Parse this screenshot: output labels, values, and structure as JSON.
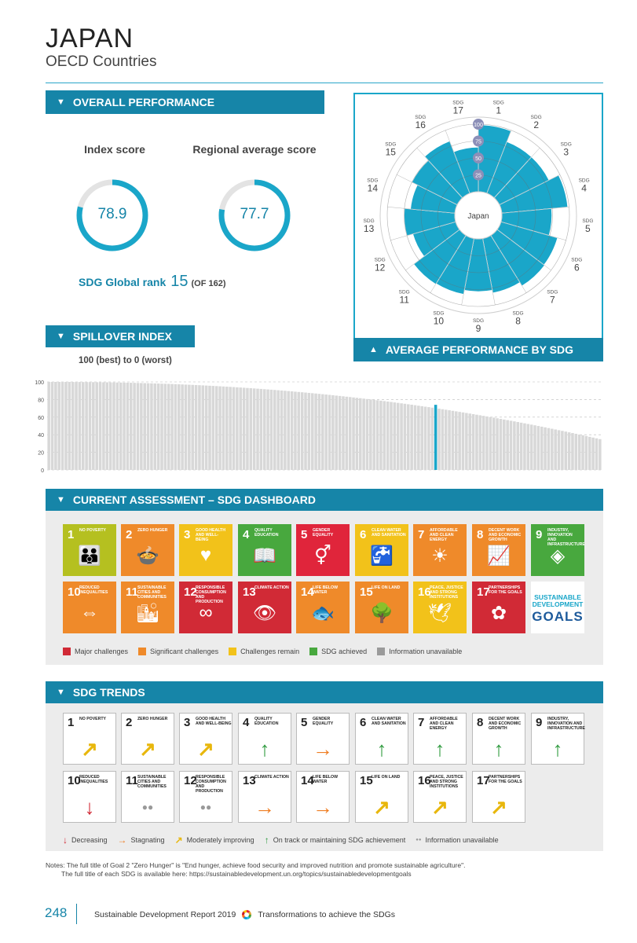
{
  "header": {
    "title": "JAPAN",
    "subtitle": "OECD Countries"
  },
  "overall": {
    "banner": "OVERALL PERFORMANCE",
    "index_label": "Index score",
    "regional_label": "Regional average score",
    "index_score": "78.9",
    "regional_score": "77.7",
    "index_fraction": 0.789,
    "regional_fraction": 0.777,
    "rank_label": "SDG Global rank",
    "rank_value": "15",
    "rank_of": "(OF 162)"
  },
  "radar": {
    "banner": "AVERAGE PERFORMANCE BY SDG",
    "center_label": "Japan",
    "ring_labels": [
      "25",
      "50",
      "75",
      "100"
    ],
    "prefix": "SDG",
    "goals": [
      "1",
      "2",
      "3",
      "4",
      "5",
      "6",
      "7",
      "8",
      "9",
      "10",
      "11",
      "12",
      "13",
      "14",
      "15",
      "16",
      "17"
    ],
    "values": [
      99,
      82,
      82,
      98,
      74,
      87,
      88,
      82,
      78,
      84,
      85,
      66,
      75,
      66,
      75,
      83,
      66
    ]
  },
  "spillover": {
    "banner": "SPILLOVER INDEX",
    "note": "100 (best) to 0 (worst)",
    "highlight_value": 74,
    "highlight_rank": 113
  },
  "chart_data": {
    "type": "bar",
    "title": "",
    "ylim": [
      0,
      100
    ],
    "yticks": [
      "0",
      "20",
      "40",
      "60",
      "80",
      "100"
    ],
    "grid": true,
    "n_countries": 162,
    "series": [
      {
        "values_description_start": 100,
        "values_end": 35
      }
    ],
    "highlight": {
      "value": 74,
      "position": 113
    }
  },
  "dashboard": {
    "banner": "CURRENT ASSESSMENT – SDG DASHBOARD",
    "tiles": [
      {
        "n": "1",
        "t": "No poverty",
        "color": "#b5c020",
        "icon": "👪"
      },
      {
        "n": "2",
        "t": "Zero hunger",
        "color": "#ef8a2a",
        "icon": "🍲"
      },
      {
        "n": "3",
        "t": "Good health and well-being",
        "color": "#f2c21a",
        "icon": "♥"
      },
      {
        "n": "4",
        "t": "Quality education",
        "color": "#48a83e",
        "icon": "📖"
      },
      {
        "n": "5",
        "t": "Gender equality",
        "color": "#e0253b",
        "icon": "⚥"
      },
      {
        "n": "6",
        "t": "Clean water and sanitation",
        "color": "#f2c21a",
        "icon": "🚰"
      },
      {
        "n": "7",
        "t": "Affordable and clean energy",
        "color": "#ef8a2a",
        "icon": "☀"
      },
      {
        "n": "8",
        "t": "Decent work and economic growth",
        "color": "#ef8a2a",
        "icon": "📈"
      },
      {
        "n": "9",
        "t": "Industry, innovation and infrastructure",
        "color": "#48a83e",
        "icon": "◈"
      },
      {
        "n": "10",
        "t": "Reduced inequalities",
        "color": "#ef8a2a",
        "icon": "⇔"
      },
      {
        "n": "11",
        "t": "Sustainable cities and communities",
        "color": "#ef8a2a",
        "icon": "🏙"
      },
      {
        "n": "12",
        "t": "Responsible consumption and production",
        "color": "#d12a36",
        "icon": "∞"
      },
      {
        "n": "13",
        "t": "Climate action",
        "color": "#d12a36",
        "icon": "👁"
      },
      {
        "n": "14",
        "t": "Life below water",
        "color": "#ef8a2a",
        "icon": "🐟"
      },
      {
        "n": "15",
        "t": "Life on land",
        "color": "#ef8a2a",
        "icon": "🌳"
      },
      {
        "n": "16",
        "t": "Peace, justice and strong institutions",
        "color": "#f2c21a",
        "icon": "🕊"
      },
      {
        "n": "17",
        "t": "Partnerships for the goals",
        "color": "#d12a36",
        "icon": "✿"
      }
    ],
    "logo_line1": "SUSTAINABLE DEVELOPMENT",
    "logo_line2": "GOALS",
    "legend": [
      {
        "label": "Major challenges",
        "color": "#d12a36"
      },
      {
        "label": "Significant challenges",
        "color": "#ef8a2a"
      },
      {
        "label": "Challenges remain",
        "color": "#f2c21a"
      },
      {
        "label": "SDG achieved",
        "color": "#48a83e"
      },
      {
        "label": "Information unavailable",
        "color": "#9a9a9a"
      }
    ]
  },
  "trends": {
    "banner": "SDG TRENDS",
    "tiles": [
      {
        "n": "1",
        "t": "No poverty",
        "arrow": "↗",
        "color": "#e8b70c"
      },
      {
        "n": "2",
        "t": "Zero hunger",
        "arrow": "↗",
        "color": "#e8b70c"
      },
      {
        "n": "3",
        "t": "Good health and well-being",
        "arrow": "↗",
        "color": "#e8b70c"
      },
      {
        "n": "4",
        "t": "Quality education",
        "arrow": "↑",
        "color": "#2e9a3e"
      },
      {
        "n": "5",
        "t": "Gender equality",
        "arrow": "→",
        "color": "#ef7d22"
      },
      {
        "n": "6",
        "t": "Clean water and sanitation",
        "arrow": "↑",
        "color": "#2e9a3e"
      },
      {
        "n": "7",
        "t": "Affordable and clean energy",
        "arrow": "↑",
        "color": "#2e9a3e"
      },
      {
        "n": "8",
        "t": "Decent work and economic growth",
        "arrow": "↑",
        "color": "#2e9a3e"
      },
      {
        "n": "9",
        "t": "Industry, innovation and infrastructure",
        "arrow": "↑",
        "color": "#2e9a3e"
      },
      {
        "n": "10",
        "t": "Reduced inequalities",
        "arrow": "↓",
        "color": "#d12a36"
      },
      {
        "n": "11",
        "t": "Sustainable cities and communities",
        "arrow": "●●",
        "color": "#999999"
      },
      {
        "n": "12",
        "t": "Responsible consumption and production",
        "arrow": "●●",
        "color": "#999999"
      },
      {
        "n": "13",
        "t": "Climate action",
        "arrow": "→",
        "color": "#ef7d22"
      },
      {
        "n": "14",
        "t": "Life below water",
        "arrow": "→",
        "color": "#ef7d22"
      },
      {
        "n": "15",
        "t": "Life on land",
        "arrow": "↗",
        "color": "#e8b70c"
      },
      {
        "n": "16",
        "t": "Peace, justice and strong institutions",
        "arrow": "↗",
        "color": "#e8b70c"
      },
      {
        "n": "17",
        "t": "Partnerships for the goals",
        "arrow": "↗",
        "color": "#e8b70c"
      }
    ],
    "legend": [
      {
        "sym": "↓",
        "label": "Decreasing",
        "color": "#d12a36"
      },
      {
        "sym": "→",
        "label": "Stagnating",
        "color": "#ef7d22"
      },
      {
        "sym": "↗",
        "label": "Moderately improving",
        "color": "#e8b70c"
      },
      {
        "sym": "↑",
        "label": "On track or maintaining SDG achievement",
        "color": "#2e9a3e"
      },
      {
        "sym": "●●",
        "label": "Information unavailable",
        "color": "#999999"
      }
    ]
  },
  "notes": {
    "line1": "Notes: The full title of Goal 2 \"Zero Hunger\" is \"End hunger, achieve food security and improved nutrition and promote sustainable agriculture\".",
    "line2": "The full title of each SDG is available here: https://sustainabledevelopment.un.org/topics/sustainabledevelopmentgoals"
  },
  "footer": {
    "page": "248",
    "report": "Sustainable Development Report 2019",
    "section": "Transformations to achieve the SDGs"
  }
}
